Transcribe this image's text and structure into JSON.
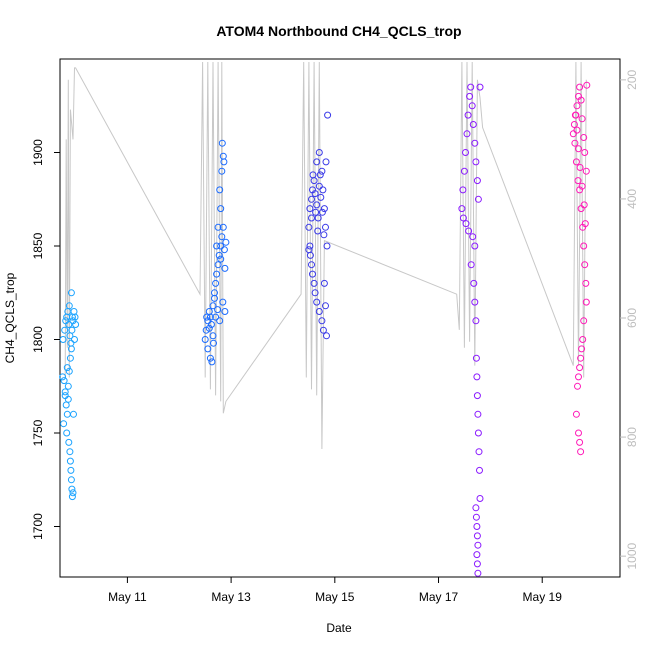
{
  "chart_data": {
    "type": "scatter",
    "title": "ATOM4 Northbound CH4_QCLS_trop",
    "xlabel": "Date",
    "ylabel": "CH4_QCLS_trop",
    "x_unit": "day of May 2018",
    "xlim": [
      9.7,
      20.5
    ],
    "ylim": [
      1673,
      1950
    ],
    "x_ticks": [
      11,
      13,
      15,
      17,
      19
    ],
    "x_tick_labels": [
      "May 11",
      "May 13",
      "May 15",
      "May 17",
      "May 19"
    ],
    "y_ticks": [
      1700,
      1750,
      1800,
      1850,
      1900
    ],
    "y_tick_labels": [
      "1700",
      "1750",
      "1800",
      "1850",
      "1900"
    ],
    "y2_ticks": [
      200,
      400,
      600,
      800,
      1000
    ],
    "y2_tick_labels": [
      "200",
      "400",
      "600",
      "800",
      "1000"
    ],
    "y2_lim": [
      1035,
      165
    ],
    "y2_reversed": true,
    "grid": false,
    "pressure_trace_color": "#c8c8c8",
    "series": [
      {
        "color": "#1aa3ff",
        "points": [
          [
            9.75,
            1780
          ],
          [
            9.78,
            1778
          ],
          [
            9.8,
            1770
          ],
          [
            9.82,
            1765
          ],
          [
            9.84,
            1760
          ],
          [
            9.86,
            1775
          ],
          [
            9.88,
            1783
          ],
          [
            9.9,
            1790
          ],
          [
            9.92,
            1795
          ],
          [
            9.76,
            1800
          ],
          [
            9.79,
            1805
          ],
          [
            9.81,
            1810
          ],
          [
            9.83,
            1812
          ],
          [
            9.85,
            1815
          ],
          [
            9.87,
            1808
          ],
          [
            9.89,
            1802
          ],
          [
            9.91,
            1798
          ],
          [
            9.93,
            1805
          ],
          [
            9.95,
            1810
          ],
          [
            9.97,
            1815
          ],
          [
            9.99,
            1812
          ],
          [
            9.77,
            1755
          ],
          [
            9.83,
            1750
          ],
          [
            9.87,
            1745
          ],
          [
            9.89,
            1740
          ],
          [
            9.9,
            1735
          ],
          [
            9.91,
            1730
          ],
          [
            9.92,
            1725
          ],
          [
            9.93,
            1720
          ],
          [
            9.94,
            1716
          ],
          [
            9.95,
            1718
          ],
          [
            9.96,
            1760
          ],
          [
            9.98,
            1800
          ],
          [
            10.0,
            1808
          ],
          [
            9.92,
            1825
          ],
          [
            9.88,
            1818
          ],
          [
            9.84,
            1785
          ],
          [
            9.8,
            1772
          ],
          [
            9.86,
            1768
          ],
          [
            9.94,
            1812
          ]
        ]
      },
      {
        "color": "#1a6bff",
        "points": [
          [
            12.5,
            1800
          ],
          [
            12.52,
            1805
          ],
          [
            12.55,
            1810
          ],
          [
            12.58,
            1815
          ],
          [
            12.6,
            1812
          ],
          [
            12.62,
            1808
          ],
          [
            12.65,
            1818
          ],
          [
            12.68,
            1822
          ],
          [
            12.7,
            1830
          ],
          [
            12.72,
            1835
          ],
          [
            12.75,
            1840
          ],
          [
            12.77,
            1845
          ],
          [
            12.8,
            1850
          ],
          [
            12.82,
            1855
          ],
          [
            12.85,
            1860
          ],
          [
            12.87,
            1848
          ],
          [
            12.9,
            1852
          ],
          [
            12.8,
            1870
          ],
          [
            12.78,
            1880
          ],
          [
            12.82,
            1890
          ],
          [
            12.85,
            1898
          ],
          [
            12.83,
            1905
          ],
          [
            12.86,
            1895
          ],
          [
            12.55,
            1795
          ],
          [
            12.6,
            1790
          ],
          [
            12.63,
            1788
          ],
          [
            12.66,
            1798
          ],
          [
            12.7,
            1812
          ],
          [
            12.74,
            1816
          ],
          [
            12.78,
            1810
          ],
          [
            12.84,
            1820
          ],
          [
            12.88,
            1815
          ],
          [
            12.75,
            1860
          ],
          [
            12.72,
            1850
          ],
          [
            12.68,
            1825
          ],
          [
            12.65,
            1802
          ],
          [
            12.58,
            1806
          ],
          [
            12.53,
            1812
          ],
          [
            12.88,
            1838
          ],
          [
            12.8,
            1843
          ]
        ]
      },
      {
        "color": "#3a3ae8",
        "points": [
          [
            14.5,
            1860
          ],
          [
            14.52,
            1870
          ],
          [
            14.55,
            1875
          ],
          [
            14.57,
            1880
          ],
          [
            14.6,
            1885
          ],
          [
            14.62,
            1878
          ],
          [
            14.65,
            1872
          ],
          [
            14.68,
            1865
          ],
          [
            14.7,
            1882
          ],
          [
            14.72,
            1888
          ],
          [
            14.75,
            1890
          ],
          [
            14.77,
            1880
          ],
          [
            14.8,
            1870
          ],
          [
            14.82,
            1860
          ],
          [
            14.85,
            1850
          ],
          [
            14.53,
            1845
          ],
          [
            14.55,
            1840
          ],
          [
            14.57,
            1835
          ],
          [
            14.6,
            1830
          ],
          [
            14.62,
            1825
          ],
          [
            14.65,
            1820
          ],
          [
            14.7,
            1815
          ],
          [
            14.75,
            1810
          ],
          [
            14.78,
            1805
          ],
          [
            14.8,
            1830
          ],
          [
            14.82,
            1818
          ],
          [
            14.84,
            1802
          ],
          [
            14.86,
            1920
          ],
          [
            14.7,
            1900
          ],
          [
            14.65,
            1895
          ],
          [
            14.58,
            1888
          ],
          [
            14.55,
            1865
          ],
          [
            14.52,
            1850
          ],
          [
            14.5,
            1848
          ],
          [
            14.63,
            1868
          ],
          [
            14.67,
            1858
          ],
          [
            14.73,
            1876
          ],
          [
            14.76,
            1868
          ],
          [
            14.79,
            1856
          ],
          [
            14.83,
            1895
          ]
        ]
      },
      {
        "color": "#8a1aff",
        "points": [
          [
            17.45,
            1870
          ],
          [
            17.47,
            1880
          ],
          [
            17.5,
            1890
          ],
          [
            17.52,
            1900
          ],
          [
            17.55,
            1910
          ],
          [
            17.57,
            1920
          ],
          [
            17.6,
            1930
          ],
          [
            17.62,
            1935
          ],
          [
            17.65,
            1925
          ],
          [
            17.67,
            1915
          ],
          [
            17.7,
            1905
          ],
          [
            17.72,
            1895
          ],
          [
            17.75,
            1885
          ],
          [
            17.77,
            1875
          ],
          [
            17.8,
            1935
          ],
          [
            17.48,
            1865
          ],
          [
            17.53,
            1862
          ],
          [
            17.58,
            1858
          ],
          [
            17.63,
            1840
          ],
          [
            17.68,
            1830
          ],
          [
            17.7,
            1820
          ],
          [
            17.72,
            1810
          ],
          [
            17.73,
            1790
          ],
          [
            17.74,
            1780
          ],
          [
            17.75,
            1770
          ],
          [
            17.76,
            1760
          ],
          [
            17.77,
            1750
          ],
          [
            17.78,
            1740
          ],
          [
            17.79,
            1730
          ],
          [
            17.8,
            1715
          ],
          [
            17.72,
            1710
          ],
          [
            17.73,
            1705
          ],
          [
            17.74,
            1700
          ],
          [
            17.75,
            1695
          ],
          [
            17.76,
            1690
          ],
          [
            17.74,
            1685
          ],
          [
            17.75,
            1680
          ],
          [
            17.76,
            1675
          ],
          [
            17.7,
            1850
          ],
          [
            17.66,
            1855
          ]
        ]
      },
      {
        "color": "#ff1ab8",
        "points": [
          [
            19.6,
            1910
          ],
          [
            19.62,
            1915
          ],
          [
            19.65,
            1920
          ],
          [
            19.67,
            1925
          ],
          [
            19.7,
            1930
          ],
          [
            19.72,
            1935
          ],
          [
            19.75,
            1928
          ],
          [
            19.77,
            1918
          ],
          [
            19.8,
            1908
          ],
          [
            19.82,
            1900
          ],
          [
            19.85,
            1890
          ],
          [
            19.63,
            1905
          ],
          [
            19.66,
            1895
          ],
          [
            19.69,
            1885
          ],
          [
            19.72,
            1880
          ],
          [
            19.75,
            1870
          ],
          [
            19.78,
            1860
          ],
          [
            19.8,
            1850
          ],
          [
            19.82,
            1840
          ],
          [
            19.84,
            1830
          ],
          [
            19.85,
            1820
          ],
          [
            19.8,
            1810
          ],
          [
            19.78,
            1800
          ],
          [
            19.76,
            1795
          ],
          [
            19.74,
            1790
          ],
          [
            19.72,
            1785
          ],
          [
            19.7,
            1780
          ],
          [
            19.68,
            1775
          ],
          [
            19.66,
            1760
          ],
          [
            19.7,
            1750
          ],
          [
            19.72,
            1745
          ],
          [
            19.74,
            1740
          ],
          [
            19.64,
            1920
          ],
          [
            19.67,
            1912
          ],
          [
            19.7,
            1902
          ],
          [
            19.73,
            1892
          ],
          [
            19.77,
            1882
          ],
          [
            19.81,
            1872
          ],
          [
            19.83,
            1862
          ],
          [
            19.86,
            1936
          ]
        ]
      }
    ],
    "pressure_trace": [
      [
        9.8,
        700
      ],
      [
        9.82,
        300
      ],
      [
        9.84,
        650
      ],
      [
        9.86,
        200
      ],
      [
        9.88,
        700
      ],
      [
        9.9,
        250
      ],
      [
        9.95,
        300
      ],
      [
        9.98,
        180
      ],
      [
        10.0,
        180
      ],
      [
        12.4,
        560
      ],
      [
        12.45,
        170
      ],
      [
        12.5,
        700
      ],
      [
        12.55,
        170
      ],
      [
        12.6,
        720
      ],
      [
        12.65,
        170
      ],
      [
        12.7,
        730
      ],
      [
        12.75,
        170
      ],
      [
        12.8,
        740
      ],
      [
        12.82,
        170
      ],
      [
        12.85,
        760
      ],
      [
        12.9,
        740
      ],
      [
        14.35,
        560
      ],
      [
        14.4,
        170
      ],
      [
        14.45,
        700
      ],
      [
        14.5,
        170
      ],
      [
        14.55,
        720
      ],
      [
        14.6,
        170
      ],
      [
        14.65,
        730
      ],
      [
        14.7,
        170
      ],
      [
        14.75,
        820
      ],
      [
        14.8,
        470
      ],
      [
        17.35,
        560
      ],
      [
        17.4,
        620
      ],
      [
        17.45,
        170
      ],
      [
        17.5,
        650
      ],
      [
        17.55,
        170
      ],
      [
        17.6,
        640
      ],
      [
        17.65,
        170
      ],
      [
        17.7,
        680
      ],
      [
        17.75,
        200
      ],
      [
        17.8,
        230
      ],
      [
        17.85,
        280
      ],
      [
        19.6,
        680
      ],
      [
        19.65,
        170
      ],
      [
        19.7,
        680
      ],
      [
        19.75,
        170
      ],
      [
        19.8,
        700
      ],
      [
        19.85,
        200
      ]
    ]
  }
}
